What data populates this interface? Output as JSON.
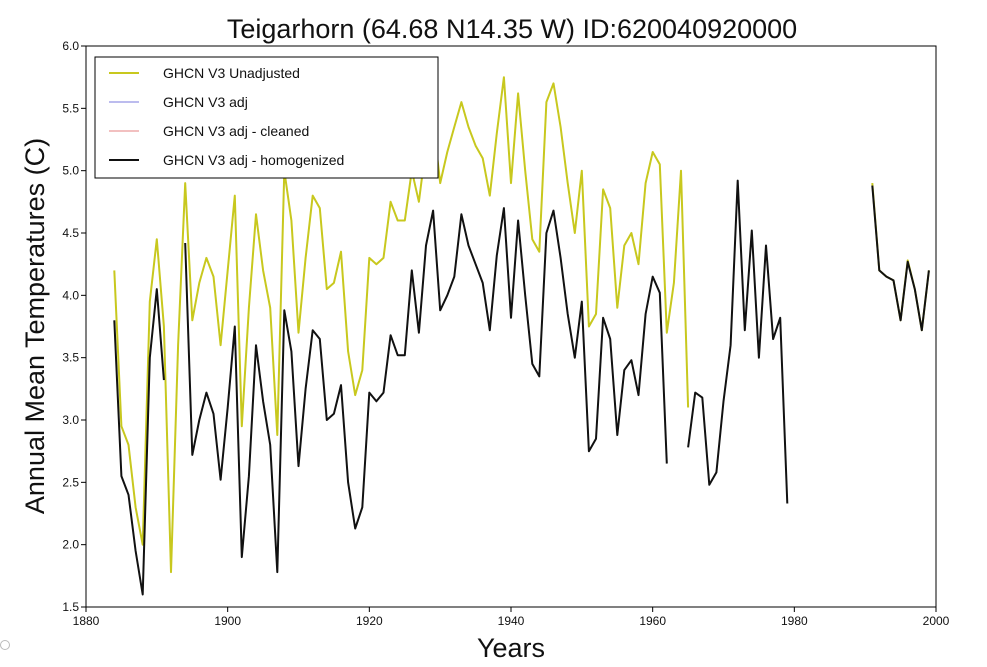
{
  "chart_data": {
    "type": "line",
    "title": "Teigarhorn (64.68 N14.35 W) ID:620040920000",
    "xlabel": "Years",
    "ylabel": "Annual Mean Temperatures (C)",
    "xlim": [
      1880,
      2000
    ],
    "ylim": [
      1.5,
      6.0
    ],
    "x_ticks": [
      1880,
      1900,
      1920,
      1940,
      1960,
      1980,
      2000
    ],
    "y_ticks": [
      "1.5",
      "2.0",
      "2.5",
      "3.0",
      "3.5",
      "4.0",
      "4.5",
      "5.0",
      "5.5",
      "6.0"
    ],
    "grid": false,
    "legend_position": "top-left",
    "series": [
      {
        "name": "GHCN V3 Unadjusted",
        "color": "#c8c81e",
        "segments": [
          [
            [
              1884,
              4.2
            ],
            [
              1885,
              2.95
            ],
            [
              1886,
              2.8
            ],
            [
              1887,
              2.3
            ],
            [
              1888,
              2.0
            ],
            [
              1889,
              3.95
            ],
            [
              1890,
              4.45
            ],
            [
              1891,
              3.75
            ],
            [
              1892,
              1.78
            ],
            [
              1893,
              3.6
            ],
            [
              1894,
              4.9
            ],
            [
              1895,
              3.8
            ],
            [
              1896,
              4.1
            ],
            [
              1897,
              4.3
            ],
            [
              1898,
              4.15
            ],
            [
              1899,
              3.6
            ],
            [
              1900,
              4.2
            ],
            [
              1901,
              4.8
            ],
            [
              1902,
              2.95
            ],
            [
              1903,
              3.9
            ],
            [
              1904,
              4.65
            ],
            [
              1905,
              4.2
            ],
            [
              1906,
              3.9
            ],
            [
              1907,
              2.88
            ],
            [
              1908,
              5.0
            ],
            [
              1909,
              4.6
            ],
            [
              1910,
              3.7
            ],
            [
              1911,
              4.3
            ],
            [
              1912,
              4.8
            ],
            [
              1913,
              4.7
            ],
            [
              1914,
              4.05
            ],
            [
              1915,
              4.1
            ],
            [
              1916,
              4.35
            ],
            [
              1917,
              3.55
            ],
            [
              1918,
              3.2
            ],
            [
              1919,
              3.4
            ],
            [
              1920,
              4.3
            ],
            [
              1921,
              4.25
            ],
            [
              1922,
              4.3
            ],
            [
              1923,
              4.75
            ],
            [
              1924,
              4.6
            ],
            [
              1925,
              4.6
            ],
            [
              1926,
              5.0
            ],
            [
              1927,
              4.75
            ],
            [
              1928,
              5.2
            ],
            [
              1929,
              5.4
            ],
            [
              1930,
              4.9
            ],
            [
              1931,
              5.15
            ],
            [
              1932,
              5.35
            ],
            [
              1933,
              5.55
            ],
            [
              1934,
              5.35
            ],
            [
              1935,
              5.2
            ],
            [
              1936,
              5.1
            ],
            [
              1937,
              4.8
            ],
            [
              1938,
              5.3
            ],
            [
              1939,
              5.75
            ],
            [
              1940,
              4.9
            ],
            [
              1941,
              5.62
            ],
            [
              1942,
              5.0
            ],
            [
              1943,
              4.45
            ],
            [
              1944,
              4.35
            ],
            [
              1945,
              5.55
            ],
            [
              1946,
              5.7
            ],
            [
              1947,
              5.35
            ],
            [
              1948,
              4.9
            ],
            [
              1949,
              4.5
            ],
            [
              1950,
              5.0
            ],
            [
              1951,
              3.75
            ],
            [
              1952,
              3.85
            ],
            [
              1953,
              4.85
            ],
            [
              1954,
              4.7
            ],
            [
              1955,
              3.9
            ],
            [
              1956,
              4.4
            ],
            [
              1957,
              4.5
            ],
            [
              1958,
              4.25
            ],
            [
              1959,
              4.9
            ],
            [
              1960,
              5.15
            ],
            [
              1961,
              5.05
            ],
            [
              1962,
              3.7
            ],
            [
              1963,
              4.1
            ],
            [
              1964,
              5.0
            ],
            [
              1965,
              3.1
            ]
          ],
          [
            [
              1991,
              4.9
            ],
            [
              1992,
              4.2
            ],
            [
              1993,
              4.15
            ],
            [
              1994,
              4.12
            ],
            [
              1995,
              3.8
            ],
            [
              1996,
              4.28
            ],
            [
              1997,
              4.05
            ],
            [
              1998,
              3.72
            ],
            [
              1999,
              4.2
            ]
          ]
        ]
      },
      {
        "name": "GHCN V3 adj",
        "color": "#bcbcee",
        "segments": []
      },
      {
        "name": "GHCN V3 adj - cleaned",
        "color": "#f2c0c0",
        "segments": []
      },
      {
        "name": "GHCN V3 adj - homogenized",
        "color": "#111111",
        "segments": [
          [
            [
              1884,
              3.8
            ],
            [
              1885,
              2.55
            ],
            [
              1886,
              2.4
            ],
            [
              1887,
              1.95
            ],
            [
              1888,
              1.6
            ],
            [
              1889,
              3.5
            ],
            [
              1890,
              4.05
            ],
            [
              1891,
              3.32
            ]
          ],
          [
            [
              1894,
              4.42
            ],
            [
              1895,
              2.72
            ],
            [
              1896,
              3.0
            ],
            [
              1897,
              3.22
            ],
            [
              1898,
              3.05
            ],
            [
              1899,
              2.52
            ],
            [
              1900,
              3.1
            ],
            [
              1901,
              3.75
            ],
            [
              1902,
              1.9
            ],
            [
              1903,
              2.55
            ],
            [
              1904,
              3.6
            ],
            [
              1905,
              3.15
            ],
            [
              1906,
              2.8
            ],
            [
              1907,
              1.78
            ],
            [
              1908,
              3.88
            ],
            [
              1909,
              3.55
            ],
            [
              1910,
              2.63
            ],
            [
              1911,
              3.25
            ],
            [
              1912,
              3.72
            ],
            [
              1913,
              3.65
            ],
            [
              1914,
              3.0
            ],
            [
              1915,
              3.05
            ],
            [
              1916,
              3.28
            ],
            [
              1917,
              2.5
            ],
            [
              1918,
              2.13
            ],
            [
              1919,
              2.3
            ],
            [
              1920,
              3.22
            ],
            [
              1921,
              3.15
            ],
            [
              1922,
              3.22
            ],
            [
              1923,
              3.68
            ],
            [
              1924,
              3.52
            ],
            [
              1925,
              3.52
            ],
            [
              1926,
              4.2
            ],
            [
              1927,
              3.7
            ],
            [
              1928,
              4.4
            ],
            [
              1929,
              4.68
            ],
            [
              1930,
              3.88
            ],
            [
              1931,
              4.0
            ],
            [
              1932,
              4.15
            ],
            [
              1933,
              4.65
            ],
            [
              1934,
              4.4
            ],
            [
              1935,
              4.25
            ],
            [
              1936,
              4.1
            ],
            [
              1937,
              3.72
            ],
            [
              1938,
              4.32
            ],
            [
              1939,
              4.7
            ],
            [
              1940,
              3.82
            ],
            [
              1941,
              4.6
            ],
            [
              1942,
              4.0
            ],
            [
              1943,
              3.45
            ],
            [
              1944,
              3.35
            ],
            [
              1945,
              4.5
            ],
            [
              1946,
              4.68
            ],
            [
              1947,
              4.3
            ],
            [
              1948,
              3.85
            ],
            [
              1949,
              3.5
            ],
            [
              1950,
              3.95
            ],
            [
              1951,
              2.75
            ],
            [
              1952,
              2.85
            ],
            [
              1953,
              3.82
            ],
            [
              1954,
              3.65
            ],
            [
              1955,
              2.88
            ],
            [
              1956,
              3.4
            ],
            [
              1957,
              3.48
            ],
            [
              1958,
              3.2
            ],
            [
              1959,
              3.85
            ],
            [
              1960,
              4.15
            ],
            [
              1961,
              4.02
            ],
            [
              1962,
              2.65
            ]
          ],
          [
            [
              1965,
              2.78
            ],
            [
              1966,
              3.22
            ],
            [
              1967,
              3.18
            ],
            [
              1968,
              2.48
            ],
            [
              1969,
              2.58
            ],
            [
              1970,
              3.15
            ],
            [
              1971,
              3.6
            ],
            [
              1972,
              4.92
            ],
            [
              1973,
              3.72
            ],
            [
              1974,
              4.52
            ],
            [
              1975,
              3.5
            ],
            [
              1976,
              4.4
            ],
            [
              1977,
              3.65
            ],
            [
              1978,
              3.82
            ],
            [
              1979,
              2.33
            ]
          ],
          [
            [
              1991,
              4.88
            ],
            [
              1992,
              4.2
            ],
            [
              1993,
              4.15
            ],
            [
              1994,
              4.12
            ],
            [
              1995,
              3.8
            ],
            [
              1996,
              4.27
            ],
            [
              1997,
              4.05
            ],
            [
              1998,
              3.72
            ],
            [
              1999,
              4.2
            ]
          ]
        ]
      }
    ]
  }
}
